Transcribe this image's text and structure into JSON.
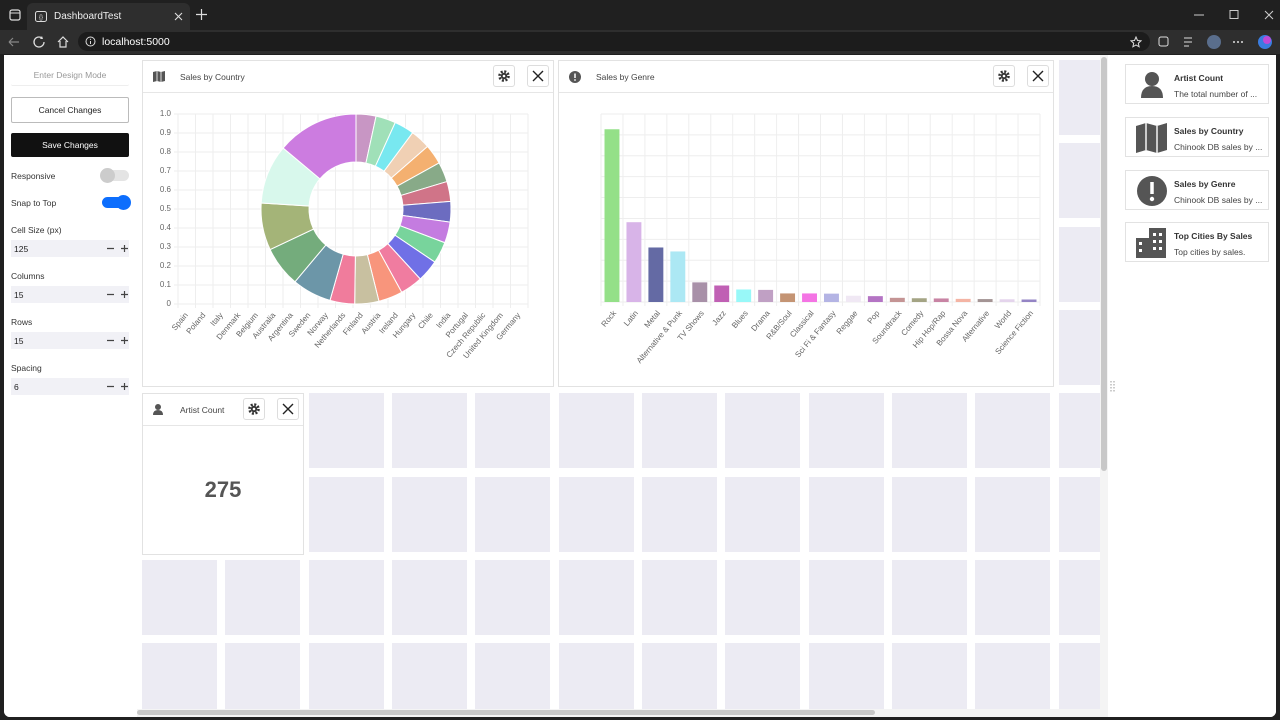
{
  "browser": {
    "tab_title": "DashboardTest",
    "url": "localhost:5000"
  },
  "sidebar": {
    "design_mode": "Enter Design Mode",
    "cancel": "Cancel Changes",
    "save": "Save Changes",
    "toggles": [
      {
        "label": "Responsive",
        "on": false
      },
      {
        "label": "Snap to Top",
        "on": true
      }
    ],
    "fields": [
      {
        "label": "Cell Size (px)",
        "value": 125
      },
      {
        "label": "Columns",
        "value": 15
      },
      {
        "label": "Rows",
        "value": 15
      },
      {
        "label": "Spacing",
        "value": 6
      }
    ]
  },
  "chart_data": [
    {
      "type": "doughnut",
      "title": "Sales by Country",
      "categories": [
        "Spain",
        "Poland",
        "Italy",
        "Denmark",
        "Belgium",
        "Australia",
        "Argentina",
        "Sweden",
        "Norway",
        "Netherlands",
        "Finland",
        "Austria",
        "Ireland",
        "Hungary",
        "Chile",
        "India",
        "Portugal",
        "Czech Republic",
        "United Kingdom",
        "Germany"
      ],
      "values": [
        38,
        38,
        38,
        38,
        38,
        38,
        38,
        39,
        40,
        41,
        42,
        43,
        46,
        46,
        47,
        75,
        77,
        90,
        113,
        156
      ],
      "colors": [
        "#c896c4",
        "#a0e0b8",
        "#78e8f0",
        "#f0d0b4",
        "#f4b070",
        "#88aa88",
        "#d07488",
        "#6c6cc0",
        "#c47ce0",
        "#78d49c",
        "#7070e6",
        "#f07ca0",
        "#f8957c",
        "#c8c0a0",
        "#f07c9c",
        "#6c96a8",
        "#74ac7c",
        "#a4b478",
        "#d8f8ec",
        "#cc7ce0"
      ],
      "ylim": [
        0,
        1
      ],
      "yticks": [
        0,
        0.1,
        0.2,
        0.3,
        0.4,
        0.5,
        0.6,
        0.7,
        0.8,
        0.9,
        {
          "value": 1,
          "label": "1.0"
        }
      ],
      "grid": true
    },
    {
      "type": "bar",
      "title": "Sales by Genre",
      "categories": [
        "Rock",
        "Latin",
        "Metal",
        "Alternative & Punk",
        "TV Shows",
        "Jazz",
        "Blues",
        "Drama",
        "R&B/Soul",
        "Classical",
        "Sci Fi & Fantasy",
        "Reggae",
        "Pop",
        "Soundtrack",
        "Comedy",
        "Hip Hop/Rap",
        "Bossa Nova",
        "Alternative",
        "World",
        "Science Fiction"
      ],
      "values": [
        827,
        382,
        261,
        242,
        94,
        79,
        60,
        58,
        41,
        41,
        40,
        30,
        28,
        20,
        18,
        17,
        15,
        14,
        13,
        12
      ],
      "colors": [
        "#94e088",
        "#d8b4e8",
        "#646aa4",
        "#ace8f4",
        "#a890a8",
        "#c060b4",
        "#98f8f8",
        "#c0a0c4",
        "#c49474",
        "#f474e4",
        "#b4b4e4",
        "#f0e8f4",
        "#b474c4",
        "#c49494",
        "#a4a484",
        "#c884a4",
        "#f4b4a4",
        "#a49494",
        "#e4d4ec",
        "#9484c4"
      ],
      "ylim": [
        0,
        900
      ],
      "grid": true
    }
  ],
  "artist_count": {
    "title": "Artist Count",
    "value": 275
  },
  "widget_list": [
    {
      "title": "Artist Count",
      "description": "The total number of ..."
    },
    {
      "title": "Sales by Country",
      "description": "Chinook DB sales by ..."
    },
    {
      "title": "Sales by Genre",
      "description": "Chinook DB sales by ..."
    },
    {
      "title": "Top Cities By Sales",
      "description": "Top cities by sales."
    }
  ]
}
